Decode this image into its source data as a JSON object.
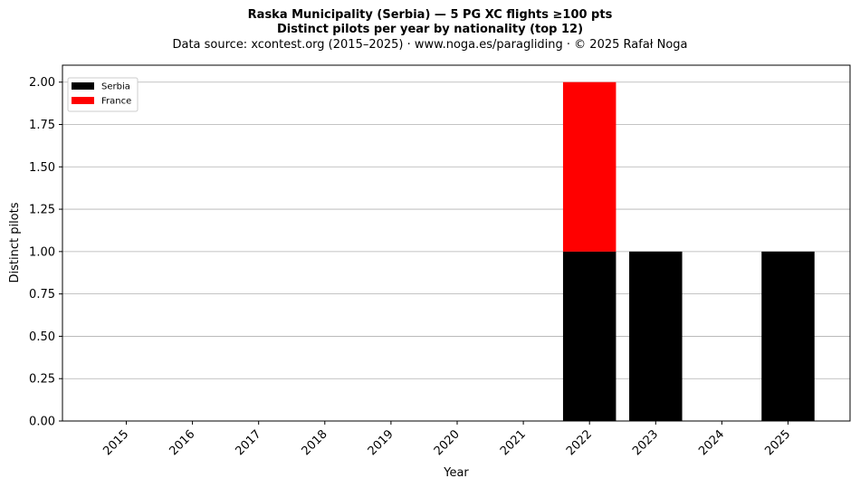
{
  "chart_data": {
    "type": "bar",
    "stacked": true,
    "title": "Raska Municipality (Serbia)  —  5 PG XC flights ≥100 pts",
    "subtitle": "Distinct pilots per year by nationality (top 12)",
    "source_line": "Data source: xcontest.org (2015–2025)  ·  www.noga.es/paragliding  ·  © 2025 Rafał Noga",
    "xlabel": "Year",
    "ylabel": "Distinct pilots",
    "categories": [
      "2015",
      "2016",
      "2017",
      "2018",
      "2019",
      "2020",
      "2021",
      "2022",
      "2023",
      "2024",
      "2025"
    ],
    "series": [
      {
        "name": "Serbia",
        "color": "#000000",
        "values": [
          0,
          0,
          0,
          0,
          0,
          0,
          0,
          1,
          1,
          0,
          1
        ]
      },
      {
        "name": "France",
        "color": "#ff0000",
        "values": [
          0,
          0,
          0,
          0,
          0,
          0,
          0,
          1,
          0,
          0,
          0
        ]
      }
    ],
    "ylim": [
      0,
      2.1
    ],
    "yticks": [
      0,
      0.25,
      0.5,
      0.75,
      1.0,
      1.25,
      1.5,
      1.75,
      2.0
    ],
    "ytick_labels": [
      "0.00",
      "0.25",
      "0.50",
      "0.75",
      "1.00",
      "1.25",
      "1.50",
      "1.75",
      "2.00"
    ],
    "grid": "horizontal",
    "legend_position": "top-left"
  }
}
